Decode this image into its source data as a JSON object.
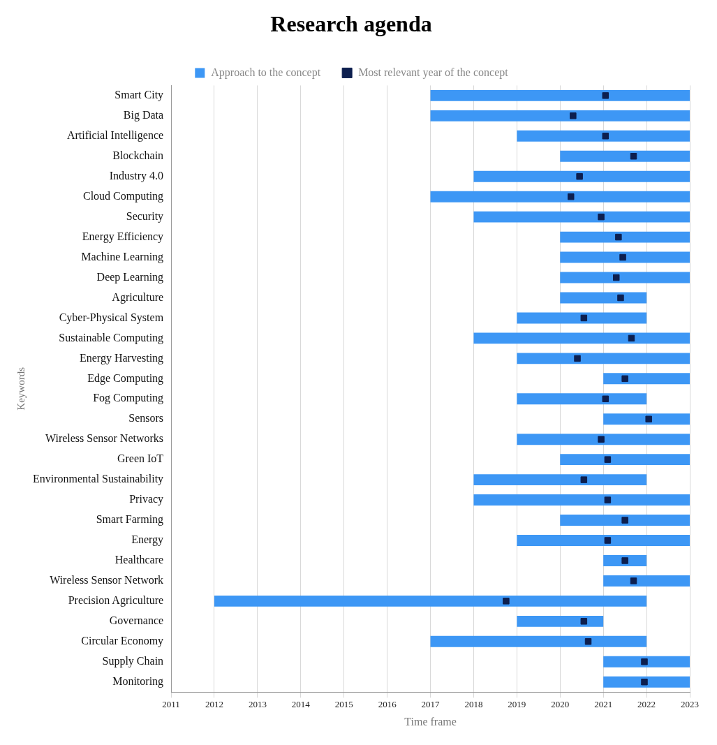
{
  "chart_data": {
    "type": "bar",
    "orientation": "horizontal",
    "title": "Research agenda",
    "xlabel": "Time frame",
    "ylabel": "Keywords",
    "categories": [
      "Smart City",
      "Big Data",
      "Artificial Intelligence",
      "Blockchain",
      "Industry 4.0",
      "Cloud Computing",
      "Security",
      "Energy Efficiency",
      "Machine Learning",
      "Deep Learning",
      "Agriculture",
      "Cyber-Physical System",
      "Sustainable Computing",
      "Energy Harvesting",
      "Edge Computing",
      "Fog Computing",
      "Sensors",
      "Wireless Sensor Networks",
      "Green IoT",
      "Environmental Sustainability",
      "Privacy",
      "Smart Farming",
      "Energy",
      "Healthcare",
      "Wireless Sensor Network",
      "Precision Agriculture",
      "Governance",
      "Circular Economy",
      "Supply Chain",
      "Monitoring"
    ],
    "series": [
      {
        "name": "Approach to the concept",
        "type": "bar",
        "color": "#3d97f5",
        "base": [
          2017,
          2017,
          2019,
          2020,
          2018,
          2017,
          2018,
          2020,
          2020,
          2020,
          2020,
          2019,
          2018,
          2019,
          2021,
          2019,
          2021,
          2019,
          2020,
          2018,
          2018,
          2020,
          2019,
          2021,
          2021,
          2012,
          2019,
          2017,
          2021,
          2021
        ],
        "values": [
          6,
          6,
          4,
          3,
          5,
          6,
          5,
          3,
          3,
          3,
          2,
          3,
          5,
          4,
          2,
          3,
          2,
          4,
          3,
          4,
          5,
          3,
          4,
          1,
          2,
          10,
          2,
          5,
          2,
          2
        ]
      },
      {
        "name": "Most relevant year of the concept",
        "type": "scatter",
        "color": "#0d1f4f",
        "x": [
          "Smart City",
          "Big Data",
          "Artificial Intelligence",
          "Blockchain",
          "Industry 4.0",
          "Cloud Computing",
          "Security",
          "Energy Efficiency",
          "Machine Learning",
          "Deep Learning",
          "Agriculture",
          "Cyber-Physical System",
          "Sustainable Computing",
          "Energy Harvesting",
          "Edge Computing",
          "Fog Computing",
          "Sensors",
          "Wireless Sensor Networks",
          "Green IoT",
          "Environmental Sustainability",
          "Privacy",
          "Smart Farming",
          "Energy",
          "Healthcare",
          "Wireless Sensor Network",
          "Precision Agriculture",
          "Governance",
          "Circular Economy",
          "Supply Chain",
          "Monitoring"
        ],
        "values": [
          2021.05,
          2020.3,
          2021.05,
          2021.7,
          2020.45,
          2020.25,
          2020.95,
          2021.35,
          2021.45,
          2021.3,
          2021.4,
          2020.55,
          2021.65,
          2020.4,
          2021.5,
          2021.05,
          2022.05,
          2020.95,
          2021.1,
          2020.55,
          2021.1,
          2021.5,
          2021.1,
          2021.5,
          2021.7,
          2018.75,
          2020.55,
          2020.65,
          2021.95,
          2021.95
        ]
      }
    ],
    "xlim": [
      2011,
      2023
    ],
    "xticks": [
      2011,
      2012,
      2013,
      2014,
      2015,
      2016,
      2017,
      2018,
      2019,
      2020,
      2021,
      2022,
      2023
    ],
    "grid": "x",
    "legend": "top",
    "marker": "square"
  }
}
